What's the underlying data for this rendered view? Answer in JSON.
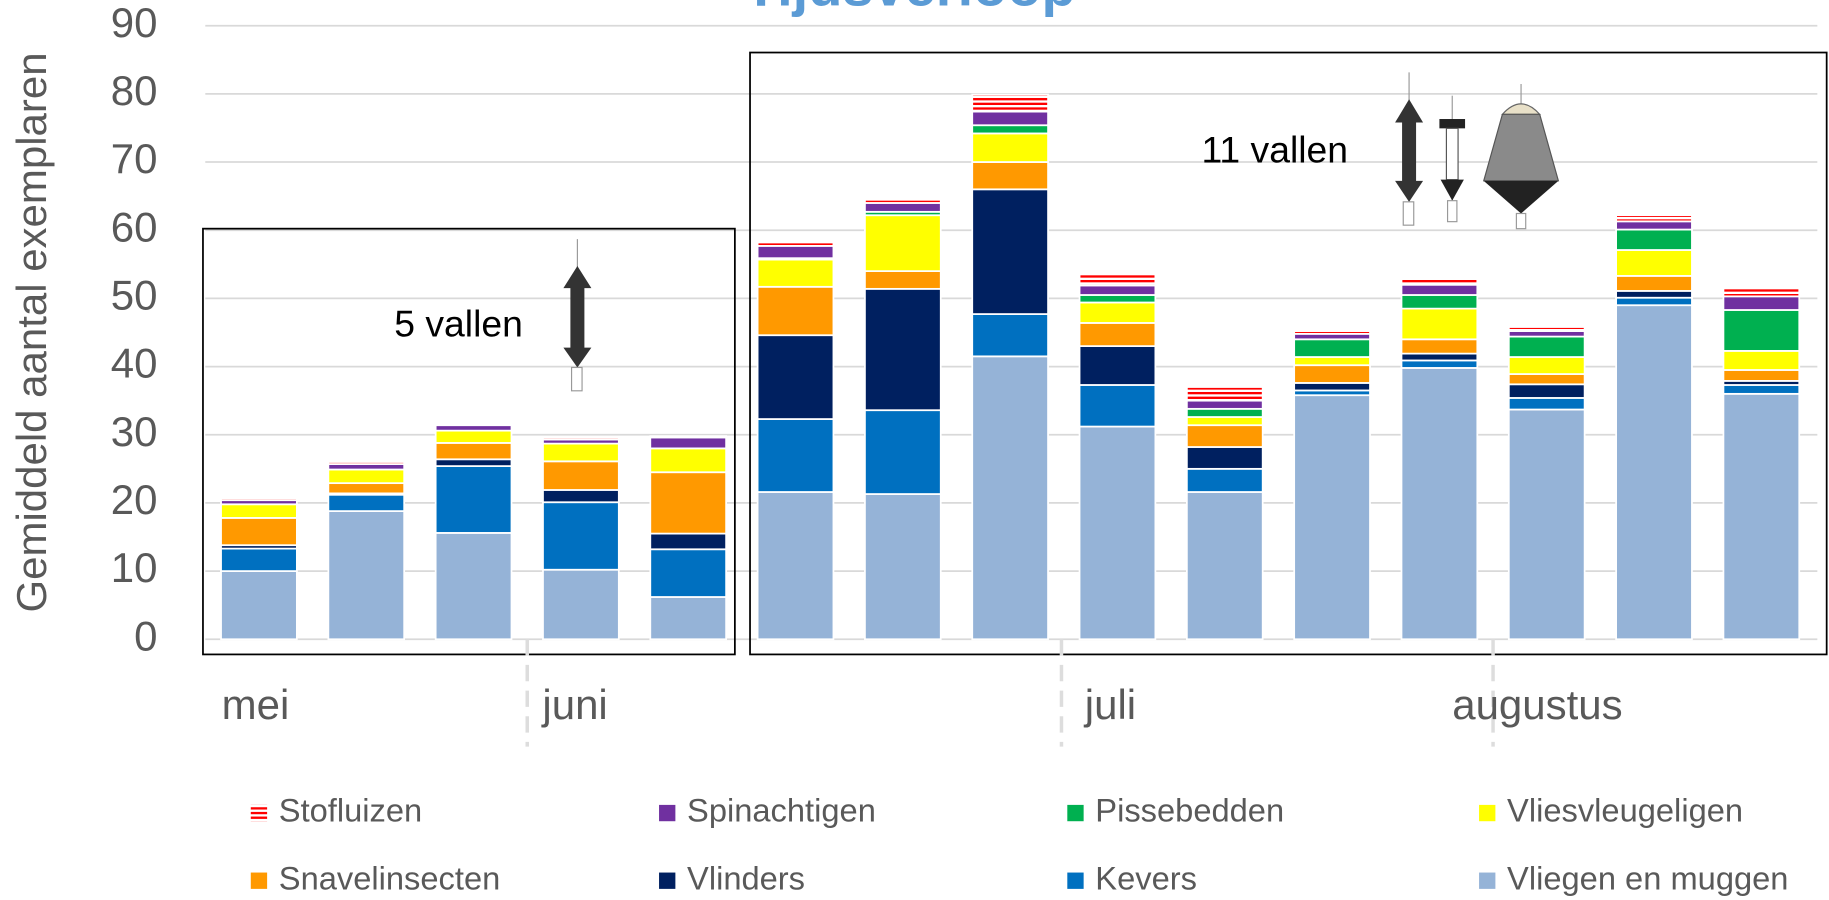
{
  "chart_data": {
    "type": "bar",
    "stacked": true,
    "title": "Tijdsverloop",
    "y_label": "Gemiddeld aantal exemplaren",
    "categories": [
      null,
      null,
      null,
      null,
      null,
      null,
      null,
      null,
      null,
      null,
      null,
      null,
      null,
      null,
      null
    ],
    "month_labels": [
      "mei",
      "juni",
      "juli",
      "augustus"
    ],
    "annotations": [
      "5 vallen",
      "11 vallen"
    ],
    "ylim": [
      0,
      90
    ],
    "yticks": [
      0,
      10,
      20,
      30,
      40,
      50,
      60,
      70,
      80,
      90
    ],
    "grid": true,
    "series": [
      {
        "name": "Vliegen en muggen",
        "color": "#95b3d7",
        "values": [
          10,
          18.8,
          15.6,
          10.2,
          6.2,
          21.6,
          21.3,
          41.5,
          31.2,
          21.6,
          35.8,
          39.8,
          33.7,
          49,
          36
        ]
      },
      {
        "name": "Kevers",
        "color": "#0070c0",
        "values": [
          3.3,
          2.4,
          9.8,
          9.9,
          7,
          10.7,
          12.3,
          6.2,
          6.1,
          3.4,
          0.7,
          1.1,
          1.7,
          1.1,
          1.3
        ]
      },
      {
        "name": "Vlinders",
        "color": "#002060",
        "values": [
          0.5,
          0.2,
          1,
          1.8,
          2.3,
          12.3,
          17.8,
          18.3,
          5.7,
          3.2,
          1.1,
          1,
          2,
          1,
          0.6
        ]
      },
      {
        "name": "Snavelinsecten",
        "color": "#ff9900",
        "values": [
          4,
          1.5,
          2.4,
          4.2,
          9,
          7.1,
          2.6,
          4,
          3.4,
          3.2,
          2.6,
          2.1,
          1.5,
          2.2,
          1.6
        ]
      },
      {
        "name": "Vliesvleugeligen",
        "color": "#ffff00",
        "values": [
          2,
          2,
          1.8,
          2.6,
          3.5,
          4,
          8.2,
          4.2,
          3,
          1.2,
          1.2,
          4.5,
          2.5,
          3.8,
          2.8
        ]
      },
      {
        "name": "Pissebedden",
        "color": "#00b050",
        "values": [
          0,
          0,
          0,
          0,
          0,
          0.2,
          0.5,
          1.2,
          1.1,
          1.2,
          2.6,
          2,
          3,
          3,
          6
        ]
      },
      {
        "name": "Spinachtigen",
        "color": "#7030a0",
        "values": [
          0.6,
          0.8,
          0.8,
          0.6,
          1.6,
          1.8,
          1.3,
          2,
          1.4,
          1.2,
          0.8,
          1.5,
          0.8,
          1.2,
          2
        ]
      },
      {
        "name": "Stofluizen",
        "color": "#ff0000",
        "pattern": "striped",
        "values": [
          0.3,
          0.3,
          0.2,
          0.4,
          0.2,
          0.5,
          0.5,
          2.5,
          1.8,
          2,
          0.4,
          1,
          0.6,
          0.9,
          1.3
        ]
      }
    ]
  }
}
